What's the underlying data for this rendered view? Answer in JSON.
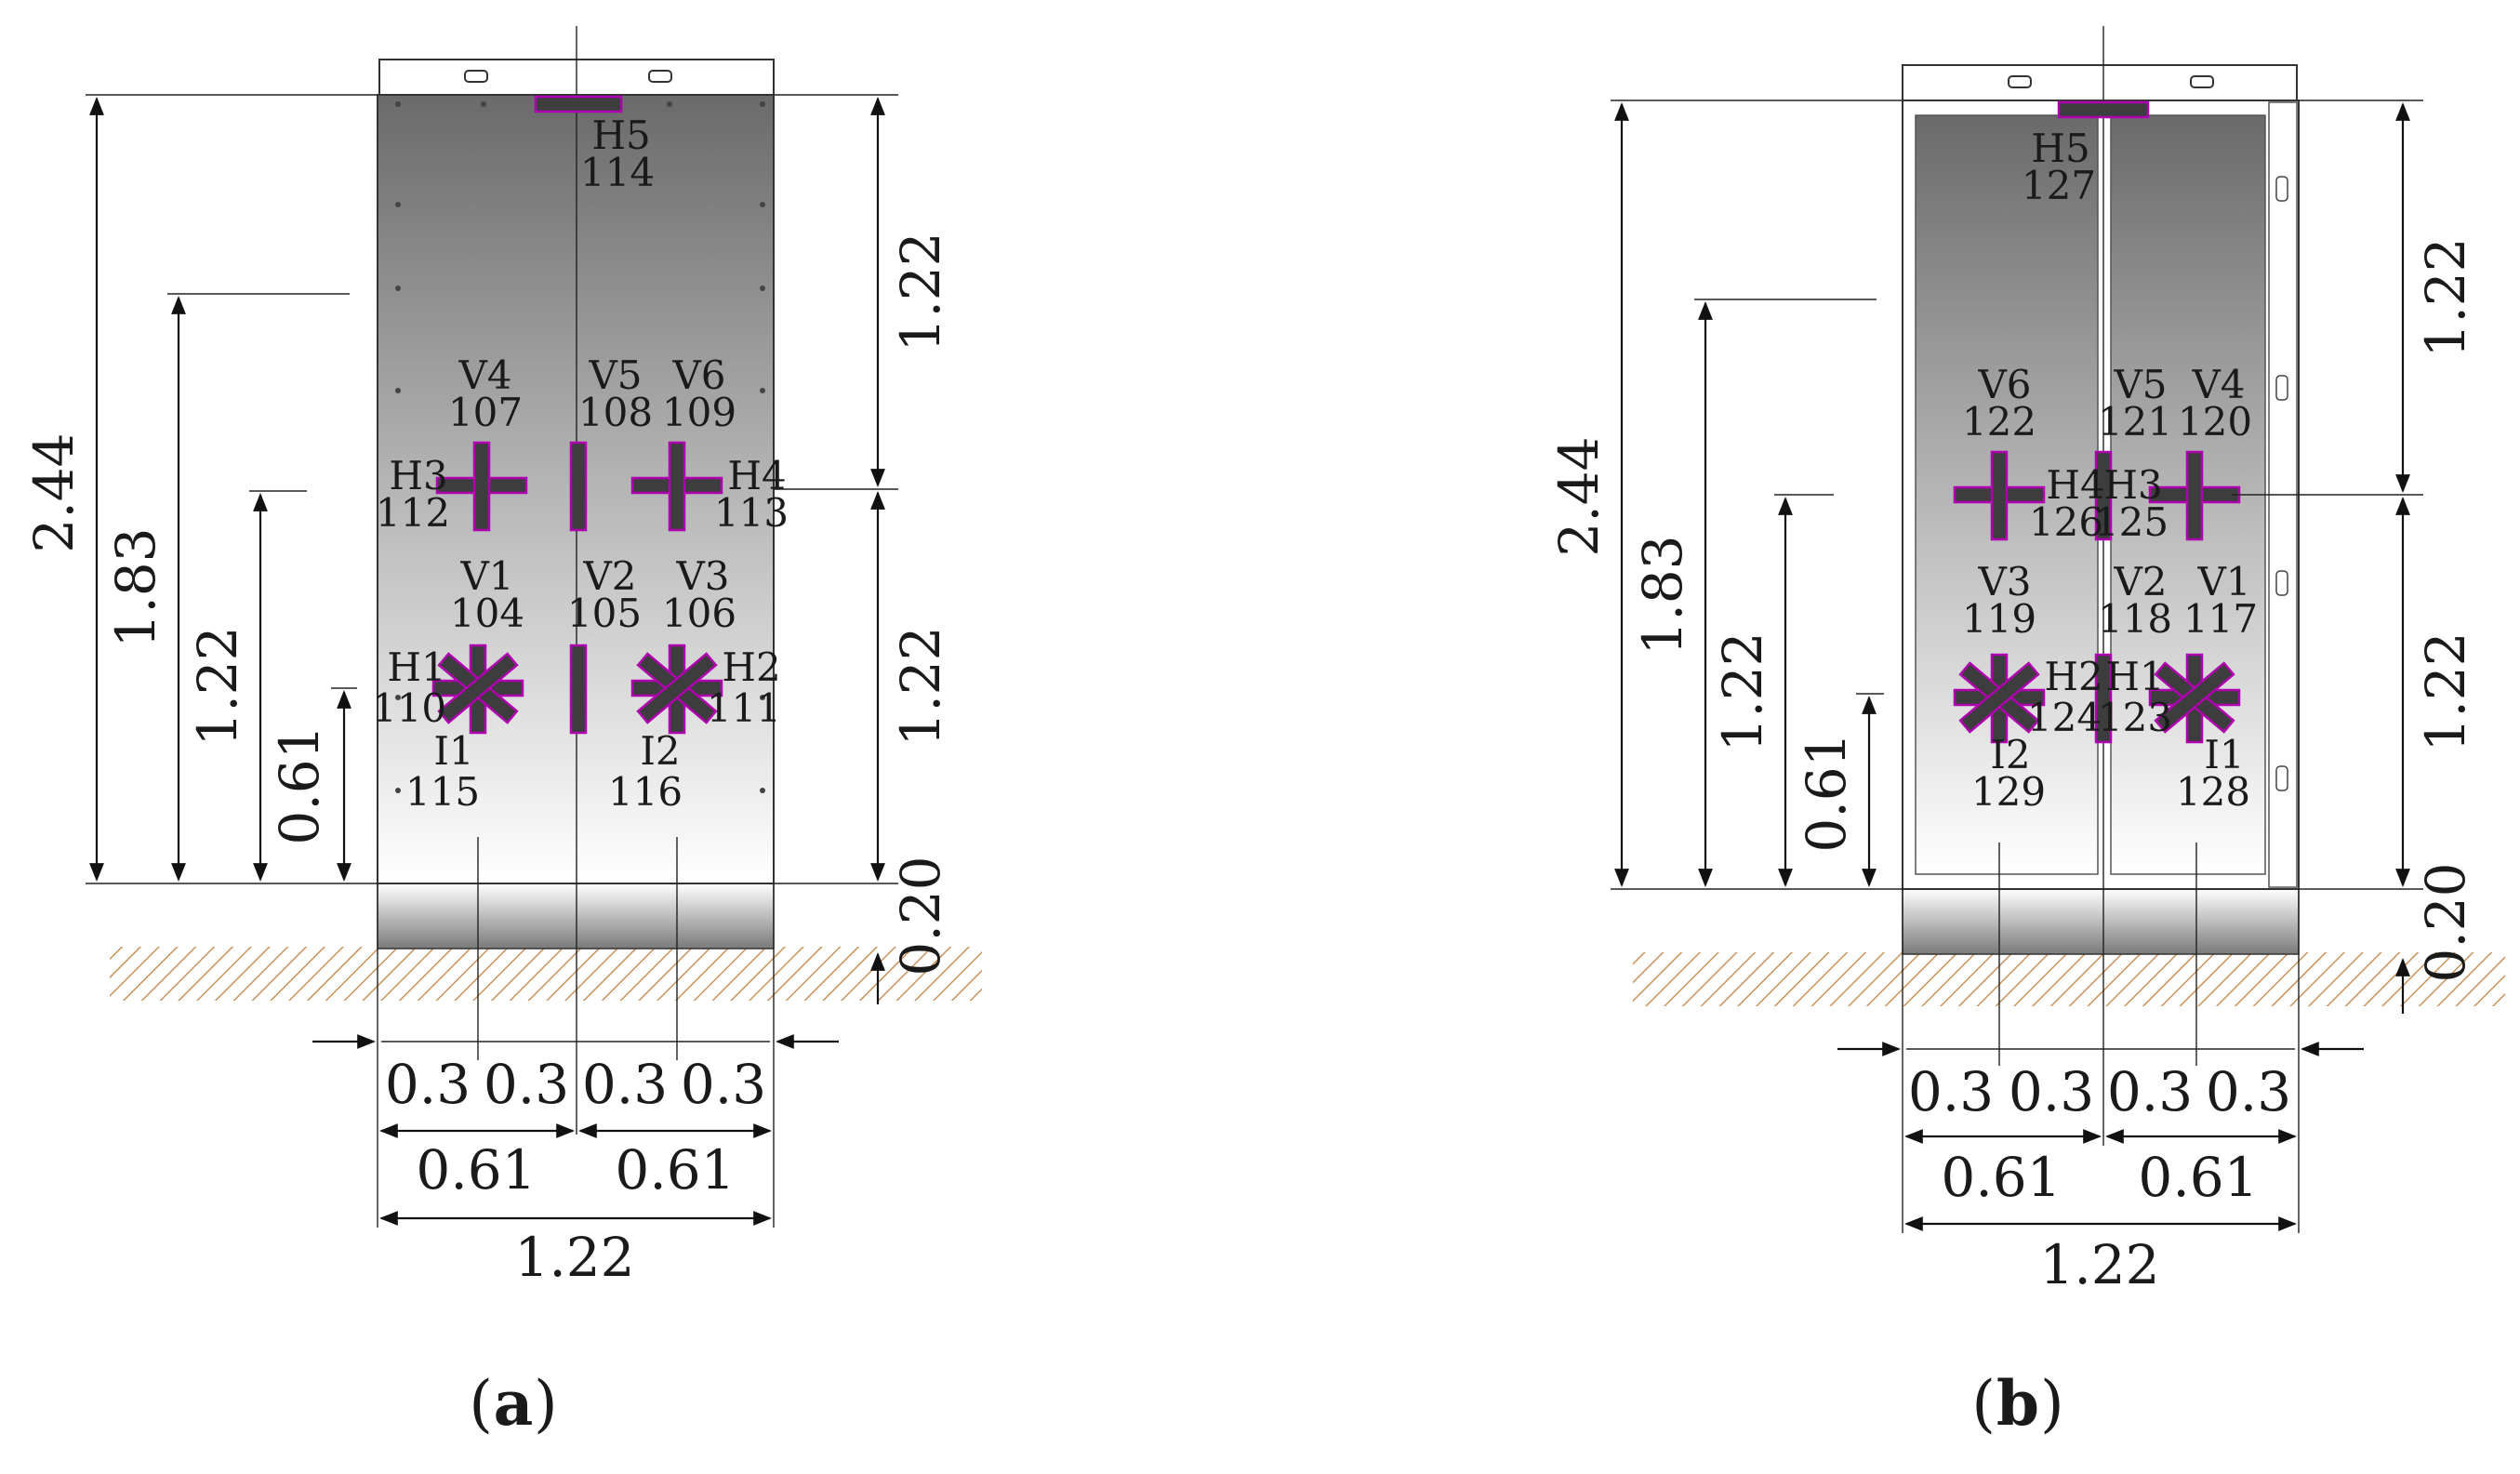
{
  "panels": [
    {
      "caption": {
        "letter": "a"
      },
      "dims_vertical_left": {
        "total": "2.44",
        "d183": "1.83",
        "d122": "1.22",
        "d061": "0.61"
      },
      "dims_vertical_right": {
        "upper": "1.22",
        "lower": "1.22",
        "base": "0.20"
      },
      "dims_horizontal": {
        "q1": "0.3",
        "q2": "0.3",
        "q3": "0.3",
        "q4": "0.3",
        "h1": "0.61",
        "h2": "0.61",
        "width": "1.22"
      },
      "labels": {
        "H5": {
          "name": "H5",
          "id": "114"
        },
        "V4": {
          "name": "V4",
          "id": "107"
        },
        "V5": {
          "name": "V5",
          "id": "108"
        },
        "V6": {
          "name": "V6",
          "id": "109"
        },
        "H3": {
          "name": "H3",
          "id": "112"
        },
        "H4": {
          "name": "H4",
          "id": "113"
        },
        "V1": {
          "name": "V1",
          "id": "104"
        },
        "V2": {
          "name": "V2",
          "id": "105"
        },
        "V3": {
          "name": "V3",
          "id": "106"
        },
        "H1": {
          "name": "H1",
          "id": "110"
        },
        "H2": {
          "name": "H2",
          "id": "111"
        },
        "I1": {
          "name": "I1",
          "id": "115"
        },
        "I2": {
          "name": "I2",
          "id": "116"
        }
      }
    },
    {
      "caption": {
        "letter": "b"
      },
      "dims_vertical_left": {
        "total": "2.44",
        "d183": "1.83",
        "d122": "1.22",
        "d061": "0.61"
      },
      "dims_vertical_right": {
        "upper": "1.22",
        "lower": "1.22",
        "base": "0.20"
      },
      "dims_horizontal": {
        "q1": "0.3",
        "q2": "0.3",
        "q3": "0.3",
        "q4": "0.3",
        "h1": "0.61",
        "h2": "0.61",
        "width": "1.22"
      },
      "labels": {
        "H5": {
          "name": "H5",
          "id": "127"
        },
        "V6": {
          "name": "V6",
          "id": "122"
        },
        "V5": {
          "name": "V5",
          "id": "121"
        },
        "V4": {
          "name": "V4",
          "id": "120"
        },
        "H4": {
          "name": "H4",
          "id": "126"
        },
        "H3": {
          "name": "H3",
          "id": "125"
        },
        "V3": {
          "name": "V3",
          "id": "119"
        },
        "V2": {
          "name": "V2",
          "id": "118"
        },
        "V1": {
          "name": "V1",
          "id": "117"
        },
        "H2": {
          "name": "H2",
          "id": "124"
        },
        "H1": {
          "name": "H1",
          "id": "123"
        },
        "I2": {
          "name": "I2",
          "id": "129"
        },
        "I1": {
          "name": "I1",
          "id": "128"
        }
      }
    }
  ],
  "colors": {
    "sensor_outline": "#b000b0",
    "sensor_fill": "#3d3d3d",
    "ground_hatch": "#c9925a",
    "panel_dark": "#6a6a6a"
  }
}
